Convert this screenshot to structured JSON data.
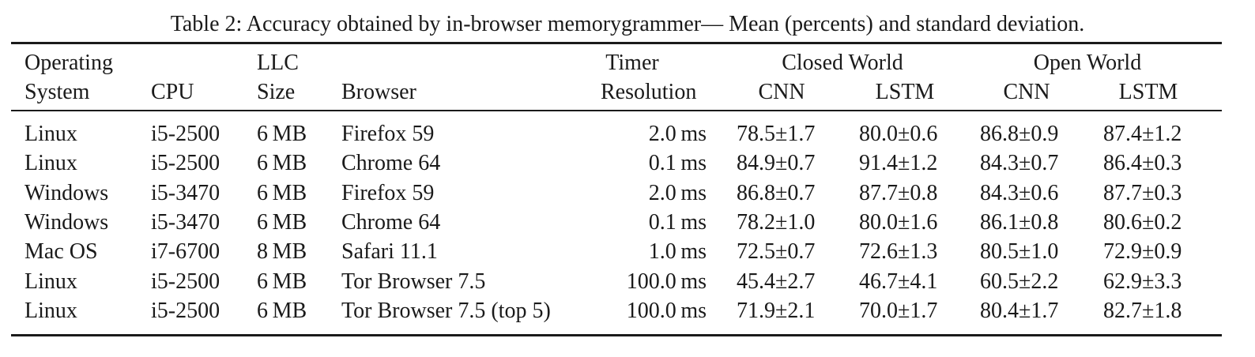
{
  "caption": "Table 2: Accuracy obtained by in-browser memorygrammer— Mean (percents) and standard deviation.",
  "header": {
    "os_line1": "Operating",
    "os_line2": "System",
    "cpu": "CPU",
    "llc_line1": "LLC",
    "llc_line2": "Size",
    "browser": "Browser",
    "timer_line1": "Timer",
    "timer_line2": "Resolution",
    "closed_world": "Closed World",
    "open_world": "Open World",
    "cnn": "CNN",
    "lstm": "LSTM"
  },
  "rows": [
    {
      "os": "Linux",
      "cpu": "i5-2500",
      "llc": "6 MB",
      "browser": "Firefox 59",
      "timer": "2.0 ms",
      "cw_cnn": "78.5±1.7",
      "cw_lstm": "80.0±0.6",
      "ow_cnn": "86.8±0.9",
      "ow_lstm": "87.4±1.2"
    },
    {
      "os": "Linux",
      "cpu": "i5-2500",
      "llc": "6 MB",
      "browser": "Chrome 64",
      "timer": "0.1 ms",
      "cw_cnn": "84.9±0.7",
      "cw_lstm": "91.4±1.2",
      "ow_cnn": "84.3±0.7",
      "ow_lstm": "86.4±0.3"
    },
    {
      "os": "Windows",
      "cpu": "i5-3470",
      "llc": "6 MB",
      "browser": "Firefox 59",
      "timer": "2.0 ms",
      "cw_cnn": "86.8±0.7",
      "cw_lstm": "87.7±0.8",
      "ow_cnn": "84.3±0.6",
      "ow_lstm": "87.7±0.3"
    },
    {
      "os": "Windows",
      "cpu": "i5-3470",
      "llc": "6 MB",
      "browser": "Chrome 64",
      "timer": "0.1 ms",
      "cw_cnn": "78.2±1.0",
      "cw_lstm": "80.0±1.6",
      "ow_cnn": "86.1±0.8",
      "ow_lstm": "80.6±0.2"
    },
    {
      "os": "Mac OS",
      "cpu": "i7-6700",
      "llc": "8 MB",
      "browser": "Safari 11.1",
      "timer": "1.0 ms",
      "cw_cnn": "72.5±0.7",
      "cw_lstm": "72.6±1.3",
      "ow_cnn": "80.5±1.0",
      "ow_lstm": "72.9±0.9"
    },
    {
      "os": "Linux",
      "cpu": "i5-2500",
      "llc": "6 MB",
      "browser": "Tor Browser 7.5",
      "timer": "100.0 ms",
      "cw_cnn": "45.4±2.7",
      "cw_lstm": "46.7±4.1",
      "ow_cnn": "60.5±2.2",
      "ow_lstm": "62.9±3.3"
    },
    {
      "os": "Linux",
      "cpu": "i5-2500",
      "llc": "6 MB",
      "browser": "Tor Browser 7.5 (top 5)",
      "timer": "100.0 ms",
      "cw_cnn": "71.9±2.1",
      "cw_lstm": "70.0±1.7",
      "ow_cnn": "80.4±1.7",
      "ow_lstm": "82.7±1.8"
    }
  ]
}
